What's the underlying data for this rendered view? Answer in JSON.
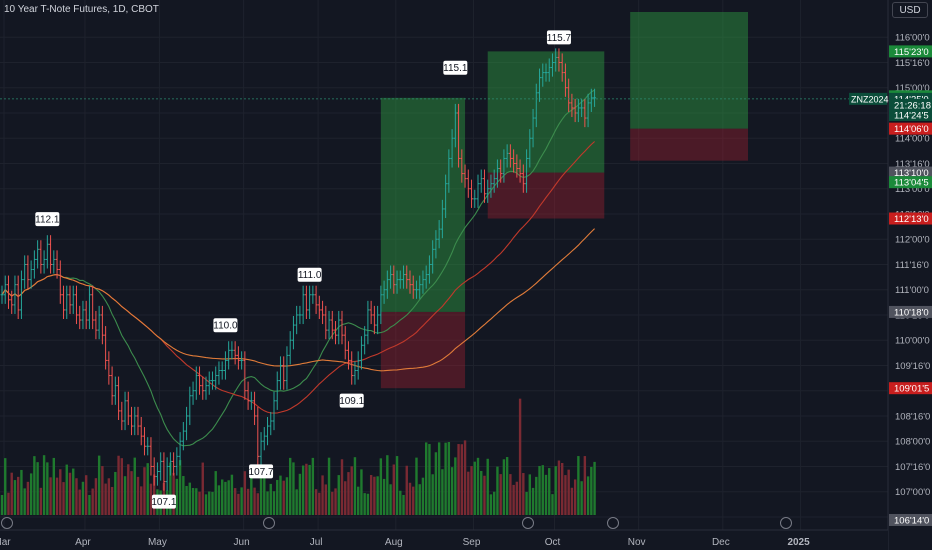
{
  "header": {
    "title": "10 Year T-Note Futures, 1D, CBOT",
    "currency": "USD"
  },
  "colors": {
    "background": "#131722",
    "grid": "#1e222d",
    "up": "#26a69a",
    "down": "#ef5350",
    "vol_up": "#1f7a2e",
    "vol_down": "#7a2a33",
    "ma_fast": "#3c8c4d",
    "ma_mid": "#c0392b",
    "ma_slow": "#e07b39",
    "long_profit": "rgba(46,160,67,0.45)",
    "long_stop": "rgba(160,32,48,0.40)",
    "label_green": "#1b8a3a",
    "label_red": "#c81e1e",
    "label_gray": "#50535e"
  },
  "chart_data": {
    "type": "candlestick",
    "title": "10 Year T-Note Futures, 1D, CBOT",
    "x_axis": {
      "labels": [
        "Mar",
        "Apr",
        "May",
        "Jun",
        "Jul",
        "Aug",
        "Sep",
        "Oct",
        "Nov",
        "Dec",
        "2025"
      ]
    },
    "y_axis": {
      "ticks": [
        "116'00'0",
        "115'16'0",
        "115'00'0",
        "114'16'0",
        "114'00'0",
        "113'16'0",
        "113'00'0",
        "112'16'0",
        "112'00'0",
        "111'16'0",
        "111'00'0",
        "110'16'0",
        "110'00'0",
        "109'16'0",
        "109'00'0",
        "108'16'0",
        "108'00'0",
        "107'16'0",
        "107'00'0",
        "106'16'0"
      ],
      "range": [
        106.4,
        116.5
      ]
    },
    "price_labels": [
      {
        "text": "115'23'0",
        "value": 115.72,
        "style": "green"
      },
      {
        "text": "114'26'5",
        "value": 114.83,
        "style": "green"
      },
      {
        "text": "114'25'0",
        "value": 114.78,
        "style": "dark"
      },
      {
        "text": "21:26:18",
        "value": 114.66,
        "style": "dark"
      },
      {
        "text": "114'24'5",
        "value": 114.46,
        "style": "dark"
      },
      {
        "text": "114'06'0",
        "value": 114.19,
        "style": "red"
      },
      {
        "text": "113'10'0",
        "value": 113.32,
        "style": "gray"
      },
      {
        "text": "113'04'5",
        "value": 113.13,
        "style": "green"
      },
      {
        "text": "112'13'0",
        "value": 112.41,
        "style": "red"
      },
      {
        "text": "110'18'0",
        "value": 110.56,
        "style": "gray"
      },
      {
        "text": "109'01'5",
        "value": 109.05,
        "style": "red"
      },
      {
        "text": "106'14'0",
        "value": 106.44,
        "style": "gray"
      }
    ],
    "symbol_tag": {
      "text": "ZNZ2024",
      "value": 114.78
    },
    "peak_labels": [
      {
        "text": "112.1",
        "date_index": 14,
        "value": 112.1,
        "kind": "high"
      },
      {
        "text": "110.0",
        "date_index": 69,
        "value": 110.0,
        "kind": "high"
      },
      {
        "text": "111.0",
        "date_index": 95,
        "value": 111.0,
        "kind": "high"
      },
      {
        "text": "115.1",
        "date_index": 140,
        "value": 115.1,
        "kind": "high"
      },
      {
        "text": "115.7",
        "date_index": 172,
        "value": 115.7,
        "kind": "high"
      },
      {
        "text": "107.1",
        "date_index": 50,
        "value": 107.1,
        "kind": "low"
      },
      {
        "text": "107.7",
        "date_index": 80,
        "value": 107.7,
        "kind": "low"
      },
      {
        "text": "109.1",
        "date_index": 108,
        "value": 109.1,
        "kind": "low"
      }
    ],
    "positions": [
      {
        "type": "long",
        "start_index": 117,
        "end_index": 143,
        "entry": 110.56,
        "target": 114.8,
        "stop": 109.05
      },
      {
        "type": "long",
        "start_index": 150,
        "end_index": 186,
        "entry": 113.32,
        "target": 115.72,
        "stop": 112.41
      },
      {
        "type": "long",
        "start_index": 194,
        "end_index": 237,
        "entry": 114.19,
        "target": 116.5,
        "stop": 114.19
      }
    ],
    "series": [
      {
        "name": "",
        "kind": "close",
        "values": [
          110.9,
          111.1,
          110.8,
          110.7,
          111.1,
          110.6,
          111.2,
          111.5,
          111.2,
          111.4,
          111.6,
          111.8,
          111.5,
          111.6,
          111.9,
          111.5,
          111.6,
          111.4,
          110.9,
          110.6,
          110.9,
          110.7,
          110.9,
          110.5,
          110.4,
          110.6,
          110.4,
          110.9,
          110.4,
          110.2,
          110.5,
          110.1,
          109.6,
          109.3,
          108.9,
          109.1,
          108.6,
          108.4,
          108.8,
          108.5,
          108.3,
          108.5,
          108.3,
          108.1,
          107.9,
          107.9,
          107.5,
          107.3,
          107.4,
          107.6,
          107.2,
          107.5,
          107.6,
          107.5,
          107.7,
          108.0,
          108.2,
          108.5,
          108.9,
          109.0,
          109.3,
          109.1,
          109.0,
          109.1,
          109.2,
          109.2,
          109.3,
          109.4,
          109.4,
          109.6,
          109.8,
          109.8,
          109.7,
          109.6,
          109.6,
          109.0,
          108.8,
          108.8,
          108.5,
          107.7,
          108.0,
          108.1,
          108.3,
          108.4,
          108.8,
          109.2,
          109.5,
          109.2,
          109.7,
          110.0,
          110.3,
          110.5,
          110.5,
          110.9,
          110.6,
          110.9,
          110.9,
          110.7,
          110.6,
          110.5,
          110.2,
          110.4,
          110.2,
          110.1,
          110.4,
          110.1,
          109.8,
          109.6,
          109.3,
          109.4,
          109.6,
          109.9,
          110.1,
          110.6,
          110.5,
          110.3,
          110.5,
          110.9,
          111.0,
          111.2,
          111.3,
          111.1,
          111.2,
          111.2,
          111.3,
          111.2,
          111.1,
          111.0,
          111.0,
          111.1,
          111.2,
          111.3,
          111.5,
          111.8,
          112.0,
          112.2,
          112.6,
          113.1,
          113.6,
          114.0,
          114.5,
          113.6,
          113.3,
          113.2,
          113.0,
          112.8,
          112.8,
          113.1,
          113.2,
          112.9,
          113.0,
          113.1,
          113.2,
          113.4,
          113.3,
          113.6,
          113.7,
          113.6,
          113.5,
          113.4,
          113.3,
          113.1,
          113.6,
          114.0,
          114.4,
          114.9,
          115.2,
          115.3,
          115.3,
          115.4,
          115.5,
          115.6,
          115.5,
          115.3,
          115.0,
          114.7,
          114.6,
          114.5,
          114.6,
          114.6,
          114.4,
          114.7,
          114.8,
          114.8
        ]
      }
    ]
  }
}
